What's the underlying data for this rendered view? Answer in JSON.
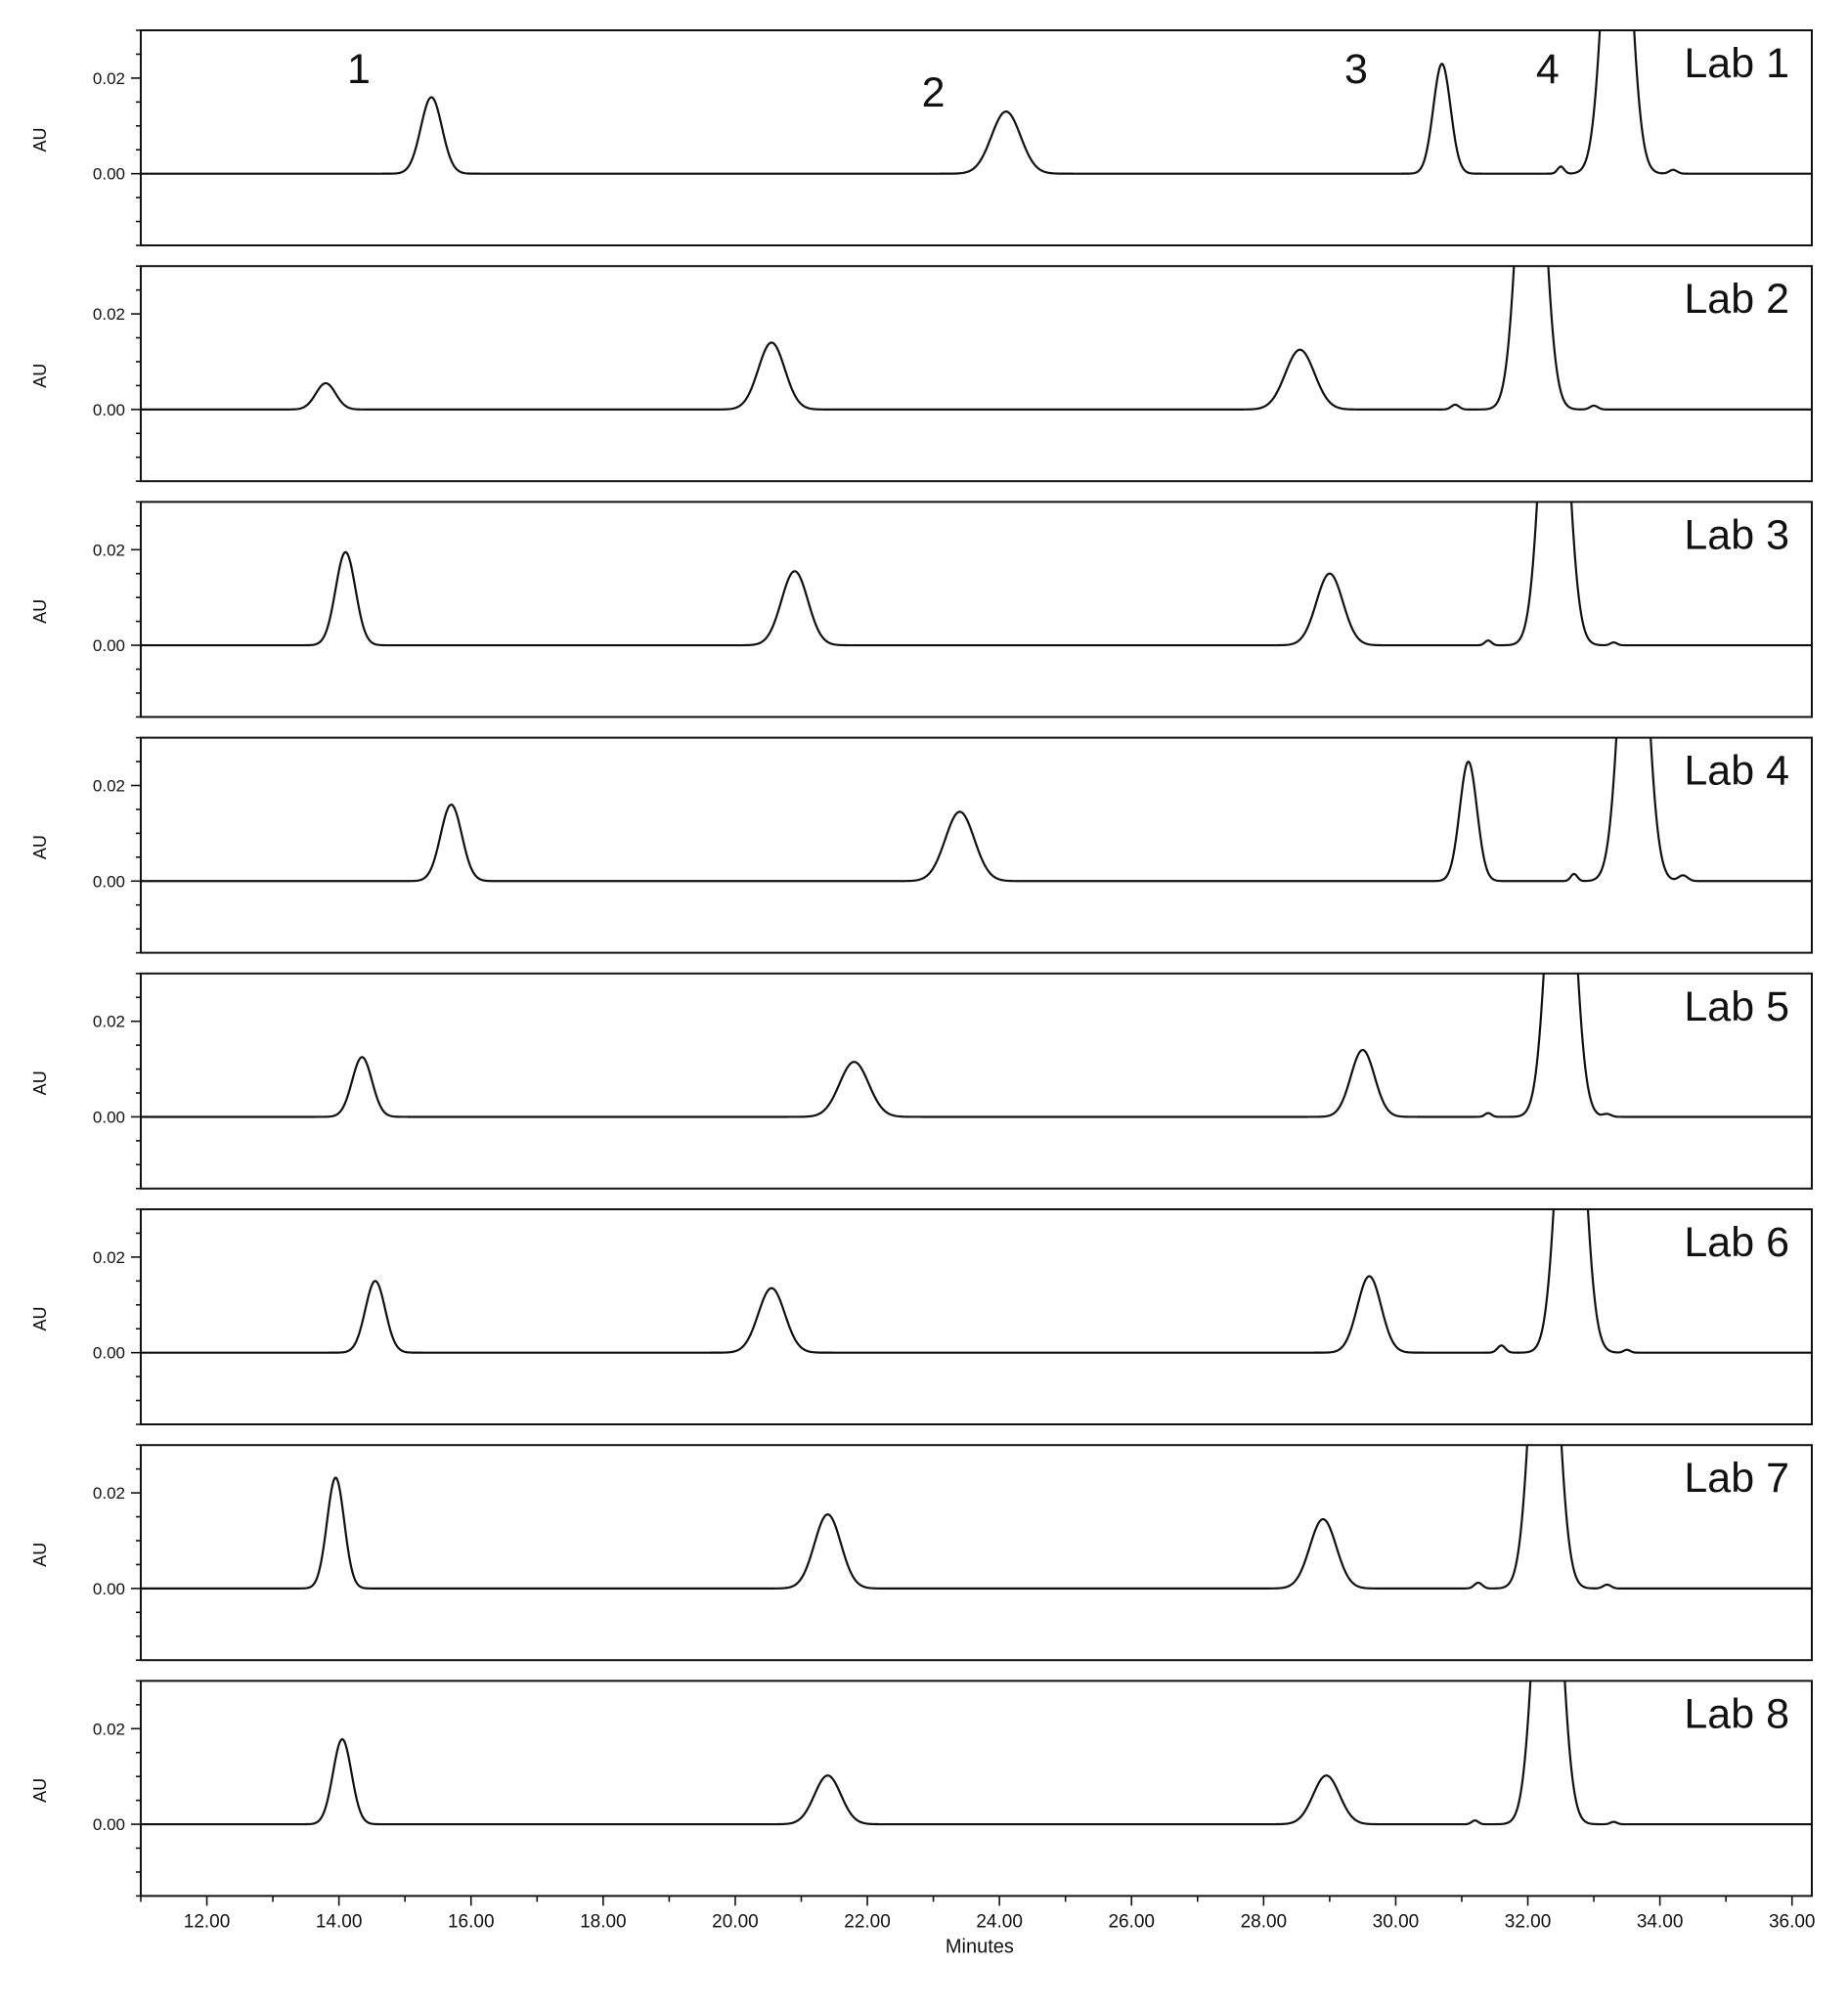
{
  "chart_data": {
    "type": "line",
    "xlabel": "Minutes",
    "ylabel": "AU",
    "xlim": [
      11.0,
      36.3
    ],
    "ylim": [
      -0.015,
      0.03
    ],
    "x_ticks": [
      "12.00",
      "14.00",
      "16.00",
      "18.00",
      "20.00",
      "22.00",
      "24.00",
      "26.00",
      "28.00",
      "30.00",
      "32.00",
      "34.00",
      "36.00"
    ],
    "y_ticks": [
      "0.02",
      "0.00"
    ],
    "grid": false,
    "peak_numbers": [
      {
        "text": "1",
        "x": 14.3
      },
      {
        "text": "2",
        "x": 23.0
      },
      {
        "text": "3",
        "x": 29.4
      },
      {
        "text": "4",
        "x": 32.3
      }
    ],
    "series": [
      {
        "name": "Lab 1",
        "peaks": [
          {
            "x": 15.4,
            "height": 0.016,
            "width": 0.16
          },
          {
            "x": 24.1,
            "height": 0.013,
            "width": 0.22
          },
          {
            "x": 30.7,
            "height": 0.023,
            "width": 0.13
          },
          {
            "x": 33.35,
            "height": 0.085,
            "width": 0.18
          },
          {
            "x": 32.5,
            "height": 0.0015,
            "width": 0.05
          },
          {
            "x": 34.2,
            "height": 0.0008,
            "width": 0.06
          }
        ]
      },
      {
        "name": "Lab 2",
        "peaks": [
          {
            "x": 13.8,
            "height": 0.0055,
            "width": 0.15
          },
          {
            "x": 20.55,
            "height": 0.014,
            "width": 0.2
          },
          {
            "x": 28.55,
            "height": 0.0125,
            "width": 0.22
          },
          {
            "x": 32.05,
            "height": 0.085,
            "width": 0.18
          },
          {
            "x": 30.9,
            "height": 0.001,
            "width": 0.06
          },
          {
            "x": 33.0,
            "height": 0.0008,
            "width": 0.06
          }
        ]
      },
      {
        "name": "Lab 3",
        "peaks": [
          {
            "x": 14.1,
            "height": 0.0195,
            "width": 0.15
          },
          {
            "x": 20.9,
            "height": 0.0155,
            "width": 0.2
          },
          {
            "x": 29.0,
            "height": 0.015,
            "width": 0.2
          },
          {
            "x": 32.4,
            "height": 0.085,
            "width": 0.18
          },
          {
            "x": 31.4,
            "height": 0.001,
            "width": 0.05
          },
          {
            "x": 33.3,
            "height": 0.0006,
            "width": 0.05
          }
        ]
      },
      {
        "name": "Lab 4",
        "peaks": [
          {
            "x": 15.7,
            "height": 0.016,
            "width": 0.16
          },
          {
            "x": 23.4,
            "height": 0.0145,
            "width": 0.22
          },
          {
            "x": 31.1,
            "height": 0.025,
            "width": 0.13
          },
          {
            "x": 33.6,
            "height": 0.085,
            "width": 0.18
          },
          {
            "x": 32.7,
            "height": 0.0015,
            "width": 0.05
          },
          {
            "x": 34.35,
            "height": 0.0012,
            "width": 0.07
          }
        ]
      },
      {
        "name": "Lab 5",
        "peaks": [
          {
            "x": 14.35,
            "height": 0.0125,
            "width": 0.15
          },
          {
            "x": 21.8,
            "height": 0.0115,
            "width": 0.22
          },
          {
            "x": 29.5,
            "height": 0.014,
            "width": 0.18
          },
          {
            "x": 32.5,
            "height": 0.085,
            "width": 0.18
          },
          {
            "x": 31.4,
            "height": 0.0008,
            "width": 0.05
          },
          {
            "x": 33.2,
            "height": 0.0006,
            "width": 0.06
          }
        ]
      },
      {
        "name": "Lab 6",
        "peaks": [
          {
            "x": 14.55,
            "height": 0.015,
            "width": 0.15
          },
          {
            "x": 20.55,
            "height": 0.0135,
            "width": 0.2
          },
          {
            "x": 29.6,
            "height": 0.016,
            "width": 0.18
          },
          {
            "x": 32.65,
            "height": 0.085,
            "width": 0.18
          },
          {
            "x": 31.6,
            "height": 0.0015,
            "width": 0.06
          },
          {
            "x": 33.5,
            "height": 0.0006,
            "width": 0.05
          }
        ]
      },
      {
        "name": "Lab 7",
        "peaks": [
          {
            "x": 13.95,
            "height": 0.0232,
            "width": 0.13
          },
          {
            "x": 21.4,
            "height": 0.0155,
            "width": 0.2
          },
          {
            "x": 28.9,
            "height": 0.0145,
            "width": 0.2
          },
          {
            "x": 32.25,
            "height": 0.085,
            "width": 0.18
          },
          {
            "x": 31.25,
            "height": 0.0012,
            "width": 0.06
          },
          {
            "x": 33.2,
            "height": 0.0008,
            "width": 0.06
          }
        ]
      },
      {
        "name": "Lab 8",
        "peaks": [
          {
            "x": 14.05,
            "height": 0.0178,
            "width": 0.14
          },
          {
            "x": 21.4,
            "height": 0.0102,
            "width": 0.2
          },
          {
            "x": 28.95,
            "height": 0.0102,
            "width": 0.2
          },
          {
            "x": 32.3,
            "height": 0.085,
            "width": 0.18
          },
          {
            "x": 31.2,
            "height": 0.0008,
            "width": 0.05
          },
          {
            "x": 33.3,
            "height": 0.0005,
            "width": 0.05
          }
        ]
      }
    ]
  }
}
